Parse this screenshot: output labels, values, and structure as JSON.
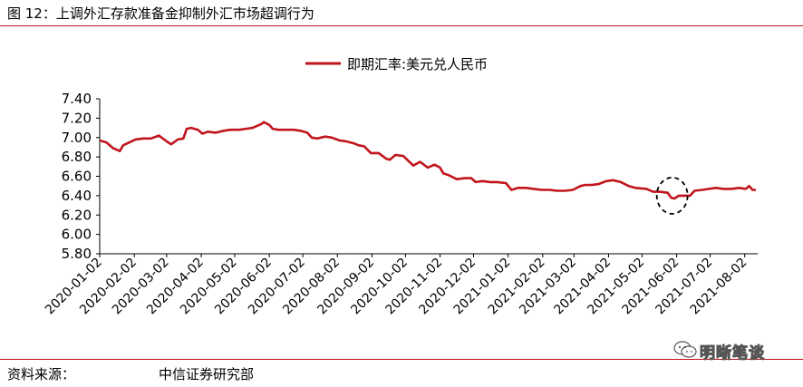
{
  "figure": {
    "title": "图 12：上调外汇存款准备金抑制外汇市场超调行为",
    "source_label": "资料来源：",
    "source_value": "中信证券研究部",
    "watermark": "明晰笔谈",
    "watermark_icon": "wechat-icon",
    "accent_color": "#c0151c"
  },
  "chart_data": {
    "type": "line",
    "title": "",
    "xlabel": "",
    "ylabel": "",
    "ylim": [
      5.8,
      7.4
    ],
    "yticks": [
      "7.40",
      "7.20",
      "7.00",
      "6.80",
      "6.60",
      "6.40",
      "6.20",
      "6.00",
      "5.80"
    ],
    "xlim": [
      "2020-01-02",
      "2021-08-12"
    ],
    "xticks": [
      "2020-01-02",
      "2020-02-02",
      "2020-03-02",
      "2020-04-02",
      "2020-05-02",
      "2020-06-02",
      "2020-07-02",
      "2020-08-02",
      "2020-09-02",
      "2020-10-02",
      "2020-11-02",
      "2020-12-02",
      "2021-01-02",
      "2021-02-02",
      "2021-03-02",
      "2021-04-02",
      "2021-05-02",
      "2021-06-02",
      "2021-07-02",
      "2021-08-02"
    ],
    "grid": false,
    "legend_position": "top-center",
    "series": [
      {
        "name": "即期汇率:美元兑人民币",
        "color": "#c0151c",
        "points": [
          [
            "2020-01-02",
            6.97
          ],
          [
            "2020-01-08",
            6.95
          ],
          [
            "2020-01-14",
            6.89
          ],
          [
            "2020-01-20",
            6.86
          ],
          [
            "2020-01-23",
            6.92
          ],
          [
            "2020-02-03",
            6.98
          ],
          [
            "2020-02-10",
            6.99
          ],
          [
            "2020-02-17",
            6.99
          ],
          [
            "2020-02-24",
            7.02
          ],
          [
            "2020-03-02",
            6.96
          ],
          [
            "2020-03-06",
            6.93
          ],
          [
            "2020-03-12",
            6.98
          ],
          [
            "2020-03-17",
            6.99
          ],
          [
            "2020-03-20",
            7.09
          ],
          [
            "2020-03-24",
            7.1
          ],
          [
            "2020-03-30",
            7.08
          ],
          [
            "2020-04-03",
            7.04
          ],
          [
            "2020-04-08",
            7.06
          ],
          [
            "2020-04-15",
            7.05
          ],
          [
            "2020-04-22",
            7.07
          ],
          [
            "2020-04-28",
            7.08
          ],
          [
            "2020-05-06",
            7.08
          ],
          [
            "2020-05-12",
            7.09
          ],
          [
            "2020-05-18",
            7.1
          ],
          [
            "2020-05-22",
            7.12
          ],
          [
            "2020-05-26",
            7.14
          ],
          [
            "2020-05-28",
            7.16
          ],
          [
            "2020-06-02",
            7.13
          ],
          [
            "2020-06-05",
            7.09
          ],
          [
            "2020-06-10",
            7.08
          ],
          [
            "2020-06-17",
            7.08
          ],
          [
            "2020-06-24",
            7.08
          ],
          [
            "2020-06-30",
            7.07
          ],
          [
            "2020-07-06",
            7.05
          ],
          [
            "2020-07-10",
            7.0
          ],
          [
            "2020-07-15",
            6.99
          ],
          [
            "2020-07-22",
            7.01
          ],
          [
            "2020-07-28",
            7.0
          ],
          [
            "2020-08-04",
            6.97
          ],
          [
            "2020-08-10",
            6.96
          ],
          [
            "2020-08-17",
            6.94
          ],
          [
            "2020-08-21",
            6.92
          ],
          [
            "2020-08-26",
            6.91
          ],
          [
            "2020-09-01",
            6.84
          ],
          [
            "2020-09-08",
            6.84
          ],
          [
            "2020-09-15",
            6.78
          ],
          [
            "2020-09-18",
            6.77
          ],
          [
            "2020-09-23",
            6.82
          ],
          [
            "2020-09-30",
            6.81
          ],
          [
            "2020-10-09",
            6.71
          ],
          [
            "2020-10-15",
            6.75
          ],
          [
            "2020-10-22",
            6.69
          ],
          [
            "2020-10-28",
            6.72
          ],
          [
            "2020-11-02",
            6.69
          ],
          [
            "2020-11-05",
            6.63
          ],
          [
            "2020-11-10",
            6.61
          ],
          [
            "2020-11-17",
            6.57
          ],
          [
            "2020-11-24",
            6.58
          ],
          [
            "2020-11-30",
            6.58
          ],
          [
            "2020-12-04",
            6.54
          ],
          [
            "2020-12-10",
            6.55
          ],
          [
            "2020-12-17",
            6.54
          ],
          [
            "2020-12-23",
            6.54
          ],
          [
            "2020-12-31",
            6.53
          ],
          [
            "2021-01-05",
            6.46
          ],
          [
            "2021-01-11",
            6.48
          ],
          [
            "2021-01-18",
            6.48
          ],
          [
            "2021-01-25",
            6.47
          ],
          [
            "2021-02-01",
            6.46
          ],
          [
            "2021-02-08",
            6.46
          ],
          [
            "2021-02-15",
            6.45
          ],
          [
            "2021-02-22",
            6.45
          ],
          [
            "2021-03-01",
            6.46
          ],
          [
            "2021-03-08",
            6.5
          ],
          [
            "2021-03-12",
            6.51
          ],
          [
            "2021-03-18",
            6.51
          ],
          [
            "2021-03-24",
            6.52
          ],
          [
            "2021-03-31",
            6.55
          ],
          [
            "2021-04-06",
            6.56
          ],
          [
            "2021-04-13",
            6.54
          ],
          [
            "2021-04-20",
            6.5
          ],
          [
            "2021-04-26",
            6.48
          ],
          [
            "2021-05-06",
            6.47
          ],
          [
            "2021-05-12",
            6.44
          ],
          [
            "2021-05-18",
            6.44
          ],
          [
            "2021-05-25",
            6.43
          ],
          [
            "2021-05-28",
            6.38
          ],
          [
            "2021-05-31",
            6.37
          ],
          [
            "2021-06-04",
            6.4
          ],
          [
            "2021-06-08",
            6.4
          ],
          [
            "2021-06-14",
            6.4
          ],
          [
            "2021-06-18",
            6.45
          ],
          [
            "2021-06-25",
            6.46
          ],
          [
            "2021-07-01",
            6.47
          ],
          [
            "2021-07-07",
            6.48
          ],
          [
            "2021-07-14",
            6.47
          ],
          [
            "2021-07-21",
            6.47
          ],
          [
            "2021-07-28",
            6.48
          ],
          [
            "2021-08-03",
            6.47
          ],
          [
            "2021-08-06",
            6.5
          ],
          [
            "2021-08-09",
            6.46
          ],
          [
            "2021-08-12",
            6.46
          ]
        ]
      }
    ],
    "annotations": [
      {
        "type": "dashed-circle",
        "date": "2021-05-29",
        "value": 6.4
      }
    ]
  }
}
